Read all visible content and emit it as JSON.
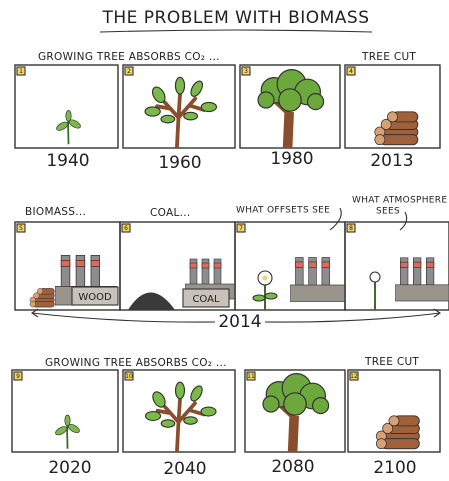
{
  "title": "THE PROBLEM WITH BIOMASS",
  "rows": [
    {
      "captions": [
        "GROWING TREE ABSORBS CO₂ ...",
        "TREE CUT"
      ],
      "panels": [
        {
          "number": "1",
          "year": "1940"
        },
        {
          "number": "2",
          "year": "1960"
        },
        {
          "number": "3",
          "year": "1980"
        },
        {
          "number": "4",
          "year": "2013"
        }
      ]
    },
    {
      "captions": [
        "BIOMASS...",
        "COAL...",
        "WHAT OFFSETS SEE",
        "WHAT ATMOSPHERE",
        "SEES"
      ],
      "panels": [
        {
          "number": "5",
          "sign": "WOOD"
        },
        {
          "number": "6",
          "sign": "COAL"
        },
        {
          "number": "7"
        },
        {
          "number": "8"
        }
      ],
      "year": "2014"
    },
    {
      "captions": [
        "GROWING TREE ABSORBS CO₂ ...",
        "TREE CUT"
      ],
      "panels": [
        {
          "number": "9",
          "year": "2020"
        },
        {
          "number": "10",
          "year": "2040"
        },
        {
          "number": "11",
          "year": "2080"
        },
        {
          "number": "12",
          "year": "2100"
        }
      ]
    }
  ]
}
